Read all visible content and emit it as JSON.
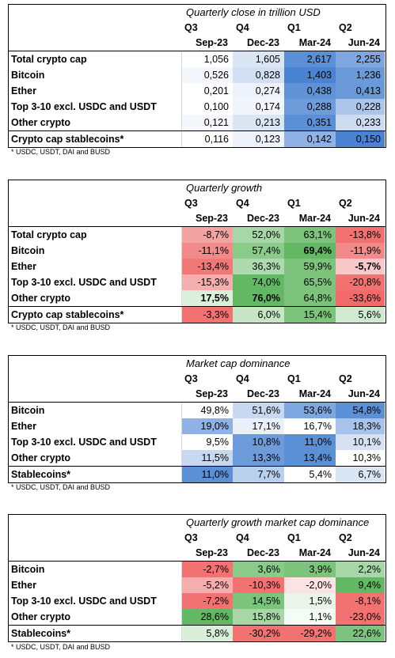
{
  "footnote": "* USDC, USDT, DAI and BUSD",
  "quarters": [
    "Q3",
    "Q4",
    "Q1",
    "Q2"
  ],
  "months": [
    "Sep-23",
    "Dec-23",
    "Mar-24",
    "Jun-24"
  ],
  "panels": [
    {
      "title": "Quarterly close in trillion USD",
      "rows": [
        {
          "label": "Total crypto cap",
          "values": [
            "1,056",
            "1,605",
            "2,617",
            "2,255"
          ],
          "colors": [
            "#ffffff",
            "#dbe6f5",
            "#5b8fd6",
            "#7ea7e0"
          ]
        },
        {
          "label": "Bitcoin",
          "values": [
            "0,526",
            "0,828",
            "1,403",
            "1,236"
          ],
          "colors": [
            "#f4f8fd",
            "#d3e0f3",
            "#4a83d2",
            "#6a9ad9"
          ]
        },
        {
          "label": "Ether",
          "values": [
            "0,201",
            "0,274",
            "0,438",
            "0,413"
          ],
          "colors": [
            "#ffffff",
            "#eef3fb",
            "#5f92d7",
            "#6a99d9"
          ]
        },
        {
          "label": "Top 3-10 excl. USDC and USDT",
          "values": [
            "0,100",
            "0,174",
            "0,288",
            "0,228"
          ],
          "colors": [
            "#ffffff",
            "#f2f6fc",
            "#6e9cda",
            "#acc6ea"
          ]
        },
        {
          "label": "Other crypto",
          "values": [
            "0,121",
            "0,213",
            "0,351",
            "0,233"
          ],
          "colors": [
            "#f4f7fc",
            "#dbe6f5",
            "#5b8fd6",
            "#cddcf1"
          ]
        },
        {
          "label": "Crypto cap stablecoins*",
          "values": [
            "0,116",
            "0,123",
            "0,142",
            "0,150"
          ],
          "colors": [
            "#ffffff",
            "#eef3fb",
            "#8fb1e3",
            "#4a83d2"
          ]
        }
      ]
    },
    {
      "title": "Quarterly growth",
      "rows": [
        {
          "label": "Total crypto cap",
          "values": [
            "-8,7%",
            "52,0%",
            "63,1%",
            "-13,8%"
          ],
          "colors": [
            "#f4a3a3",
            "#a7d6a7",
            "#7cc47c",
            "#f27272"
          ],
          "bold": [
            false,
            false,
            false,
            false
          ]
        },
        {
          "label": "Bitcoin",
          "values": [
            "-11,1%",
            "57,4%",
            "69,4%",
            "-11,9%"
          ],
          "colors": [
            "#f28a8a",
            "#8acb8a",
            "#63b963",
            "#f28a8a"
          ],
          "bold": [
            false,
            false,
            true,
            false
          ]
        },
        {
          "label": "Ether",
          "values": [
            "-13,4%",
            "36,3%",
            "59,9%",
            "-5,7%"
          ],
          "colors": [
            "#f27878",
            "#aedbae",
            "#7cc47c",
            "#f9c9c9"
          ],
          "bold": [
            false,
            false,
            false,
            true
          ]
        },
        {
          "label": "Top 3-10 excl. USDC and USDT",
          "values": [
            "-15,3%",
            "74,0%",
            "65,5%",
            "-20,8%"
          ],
          "colors": [
            "#f6adad",
            "#63b963",
            "#7cc47c",
            "#f27272"
          ],
          "bold": [
            false,
            false,
            false,
            false
          ]
        },
        {
          "label": "Other crypto",
          "values": [
            "17,5%",
            "76,0%",
            "64,8%",
            "-33,6%"
          ],
          "colors": [
            "#daf0da",
            "#63b963",
            "#7cc47c",
            "#f26a6a"
          ],
          "bold": [
            true,
            true,
            false,
            false
          ]
        },
        {
          "label": "Crypto cap stablecoins*",
          "values": [
            "-3,3%",
            "6,0%",
            "15,4%",
            "5,6%"
          ],
          "colors": [
            "#f27272",
            "#c6e6c6",
            "#7cc47c",
            "#cfead0"
          ],
          "bold": [
            false,
            false,
            false,
            false
          ]
        }
      ]
    },
    {
      "title": "Market cap dominance",
      "rows": [
        {
          "label": "Bitcoin",
          "values": [
            "49,8%",
            "51,6%",
            "53,6%",
            "54,8%"
          ],
          "colors": [
            "#ffffff",
            "#c7d8f0",
            "#7ea7e0",
            "#5b8fd6"
          ]
        },
        {
          "label": "Ether",
          "values": [
            "19,0%",
            "17,1%",
            "16,7%",
            "18,3%"
          ],
          "colors": [
            "#8fb1e3",
            "#eaf0fa",
            "#ffffff",
            "#a8c3ea"
          ]
        },
        {
          "label": "Top 3-10 excl. USDC and USDT",
          "values": [
            "9,5%",
            "10,8%",
            "11,0%",
            "10,1%"
          ],
          "colors": [
            "#ffffff",
            "#6e9cda",
            "#5b8fd6",
            "#d6e2f4"
          ]
        },
        {
          "label": "Other crypto",
          "values": [
            "11,5%",
            "13,3%",
            "13,4%",
            "10,3%"
          ],
          "colors": [
            "#c7d8f0",
            "#6e9cda",
            "#5b8fd6",
            "#ffffff"
          ]
        },
        {
          "label": "Stablecoins*",
          "values": [
            "11,0%",
            "7,7%",
            "5,4%",
            "6,7%"
          ],
          "colors": [
            "#5b8fd6",
            "#b9cfee",
            "#ffffff",
            "#dbe6f5"
          ]
        }
      ]
    },
    {
      "title": "Quarterly growth market cap dominance",
      "rows": [
        {
          "label": "Bitcoin",
          "values": [
            "-2,7%",
            "3,6%",
            "3,9%",
            "2,2%"
          ],
          "colors": [
            "#f27272",
            "#8acb8a",
            "#7cc47c",
            "#a7d6a7"
          ]
        },
        {
          "label": "Ether",
          "values": [
            "-5,2%",
            "-10,3%",
            "-2,0%",
            "9,4%"
          ],
          "colors": [
            "#f6adad",
            "#f27272",
            "#fbe3e3",
            "#63b963"
          ]
        },
        {
          "label": "Top 3-10 excl. USDC and USDT",
          "values": [
            "-7,2%",
            "14,5%",
            "1,5%",
            "-8,1%"
          ],
          "colors": [
            "#f27272",
            "#7cc47c",
            "#e8f5e8",
            "#f27272"
          ]
        },
        {
          "label": "Other crypto",
          "values": [
            "28,6%",
            "15,8%",
            "1,1%",
            "-23,0%"
          ],
          "colors": [
            "#63b963",
            "#a7d6a7",
            "#f5fbf5",
            "#f27272"
          ]
        },
        {
          "label": "Stablecoins*",
          "values": [
            "5,8%",
            "-30,2%",
            "-29,2%",
            "22,6%"
          ],
          "colors": [
            "#d9efd9",
            "#f27272",
            "#f27272",
            "#7cc47c"
          ]
        }
      ]
    }
  ]
}
